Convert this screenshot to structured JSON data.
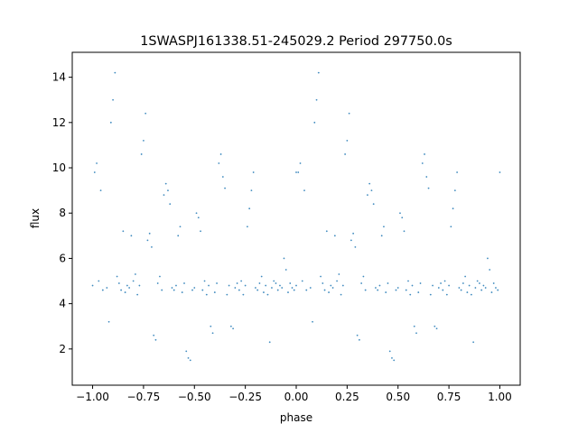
{
  "chart_data": {
    "type": "scatter",
    "title": "1SWASPJ161338.51-245029.2 Period 297750.0s",
    "xlabel": "phase",
    "ylabel": "flux",
    "xlim": [
      -1.1,
      1.1
    ],
    "ylim": [
      0.4,
      15.1
    ],
    "xticks": [
      -1.0,
      -0.75,
      -0.5,
      -0.25,
      0.0,
      0.25,
      0.5,
      0.75,
      1.0
    ],
    "xtick_labels": [
      "−1.00",
      "−0.75",
      "−0.50",
      "−0.25",
      "0.00",
      "0.25",
      "0.50",
      "0.75",
      "1.00"
    ],
    "yticks": [
      2,
      4,
      6,
      8,
      10,
      12,
      14
    ],
    "ytick_labels": [
      "2",
      "4",
      "6",
      "8",
      "10",
      "12",
      "14"
    ],
    "grid": false,
    "legend": "none",
    "marker_color": "#1f77b4",
    "series": [
      {
        "description_points": "light curve folded over two cycles; dense band around flux 4-5.5 with excursions up to ~14.6 and down to ~1.3",
        "x": [
          -1.0,
          -0.99,
          -0.98,
          -0.97,
          -0.96,
          -0.95,
          -0.93,
          -0.92,
          -0.91,
          -0.9,
          -0.89,
          -0.88,
          -0.87,
          -0.86,
          -0.85,
          -0.84,
          -0.83,
          -0.82,
          -0.81,
          -0.8,
          -0.79,
          -0.78,
          -0.77,
          -0.76,
          -0.75,
          -0.74,
          -0.73,
          -0.72,
          -0.71,
          -0.7,
          -0.69,
          -0.68,
          -0.67,
          -0.66,
          -0.65,
          -0.64,
          -0.63,
          -0.62,
          -0.61,
          -0.6,
          -0.59,
          -0.58,
          -0.57,
          -0.56,
          -0.55,
          -0.54,
          -0.53,
          -0.52,
          -0.51,
          -0.5,
          -0.49,
          -0.48,
          -0.47,
          -0.46,
          -0.45,
          -0.44,
          -0.43,
          -0.42,
          -0.41,
          -0.4,
          -0.39,
          -0.38,
          -0.37,
          -0.36,
          -0.35,
          -0.34,
          -0.33,
          -0.32,
          -0.31,
          -0.3,
          -0.29,
          -0.28,
          -0.27,
          -0.26,
          -0.25,
          -0.24,
          -0.23,
          -0.22,
          -0.21,
          -0.2,
          -0.19,
          -0.18,
          -0.17,
          -0.16,
          -0.15,
          -0.14,
          -0.13,
          -0.12,
          -0.11,
          -0.1,
          -0.09,
          -0.08,
          -0.07,
          -0.06,
          -0.05,
          -0.04,
          -0.03,
          -0.02,
          -0.01,
          0.0
        ],
        "y": [
          4.8,
          9.8,
          10.2,
          5.0,
          9.0,
          4.6,
          4.7,
          3.2,
          12.0,
          13.0,
          14.2,
          5.2,
          4.9,
          4.6,
          7.2,
          4.5,
          4.8,
          4.7,
          7.0,
          5.0,
          5.3,
          4.4,
          4.8,
          10.6,
          11.2,
          12.4,
          6.8,
          7.1,
          6.5,
          2.6,
          2.4,
          4.9,
          5.2,
          4.6,
          8.8,
          9.3,
          9.0,
          8.4,
          4.7,
          4.6,
          4.8,
          7.0,
          7.4,
          4.5,
          4.9,
          1.9,
          1.6,
          1.5,
          4.6,
          4.7,
          8.0,
          7.8,
          7.2,
          4.6,
          5.0,
          4.4,
          4.8,
          3.0,
          2.7,
          4.5,
          4.9,
          10.2,
          10.6,
          9.6,
          9.1,
          4.4,
          4.8,
          3.0,
          2.9,
          4.7,
          4.9,
          4.6,
          5.0,
          4.4,
          4.8,
          7.4,
          8.2,
          9.0,
          9.8,
          4.7,
          4.6,
          4.9,
          5.2,
          4.5,
          4.8,
          4.4,
          2.3,
          4.7,
          5.0,
          4.9,
          4.6,
          4.8,
          4.7,
          6.0,
          5.5,
          4.5,
          4.9,
          4.7,
          4.6,
          9.8
        ]
      }
    ]
  }
}
